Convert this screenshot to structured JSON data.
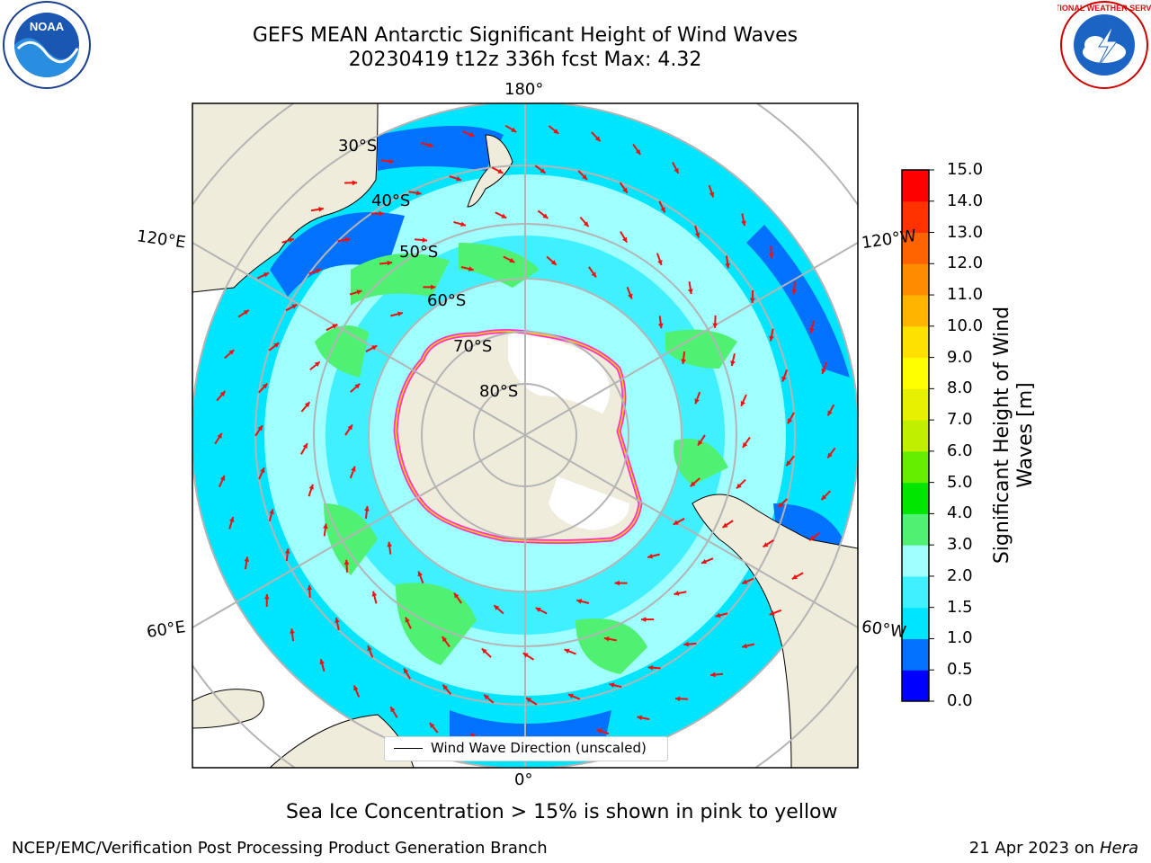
{
  "title": {
    "line1": "GEFS MEAN Antarctic Significant Height of Wind Waves",
    "line2": "20230419 t12z 336h fcst   Max: 4.32"
  },
  "logos": {
    "left": "noaa-logo",
    "right": "national-weather-service-logo",
    "left_text": "NOAA",
    "right_text": "NATIONAL WEATHER SERVICE"
  },
  "map": {
    "projection": "south-polar-stereographic",
    "longitude_labels": {
      "top": "180°",
      "bottom": "0°",
      "upper_left": "120°E",
      "upper_right": "120°W",
      "lower_left": "60°E",
      "lower_right": "60°W"
    },
    "latitude_labels": [
      "30°S",
      "40°S",
      "50°S",
      "60°S",
      "70°S",
      "80°S"
    ],
    "colors": {
      "land": "#efecdc",
      "ice_shelf": "#ffffff",
      "arrow": "#ee1111",
      "grid": "#b4b4b4",
      "sea_ice": "#ff33cc"
    }
  },
  "colorbar": {
    "title": "Significant Height of Wind Waves [m]",
    "ticks": [
      "0.0",
      "0.5",
      "1.0",
      "1.5",
      "2.0",
      "3.0",
      "4.0",
      "5.0",
      "6.0",
      "7.0",
      "8.0",
      "9.0",
      "10.0",
      "11.0",
      "12.0",
      "13.0",
      "14.0",
      "15.0"
    ],
    "colors": [
      "#0000ff",
      "#0072ff",
      "#00e5ff",
      "#40f0ff",
      "#a0ffff",
      "#50f073",
      "#00e600",
      "#66ee00",
      "#c0f000",
      "#e6f000",
      "#ffff00",
      "#ffe100",
      "#ffb400",
      "#ff8c00",
      "#ff6400",
      "#ff3200",
      "#ff0000"
    ]
  },
  "legend": {
    "label": "Wind Wave Direction (unscaled)"
  },
  "caption": "Sea Ice Concentration > 15% is shown in pink to yellow",
  "footer": {
    "left": "NCEP/EMC/Verification Post Processing Product Generation Branch",
    "date": "21 Apr 2023 on ",
    "host": "Hera"
  }
}
